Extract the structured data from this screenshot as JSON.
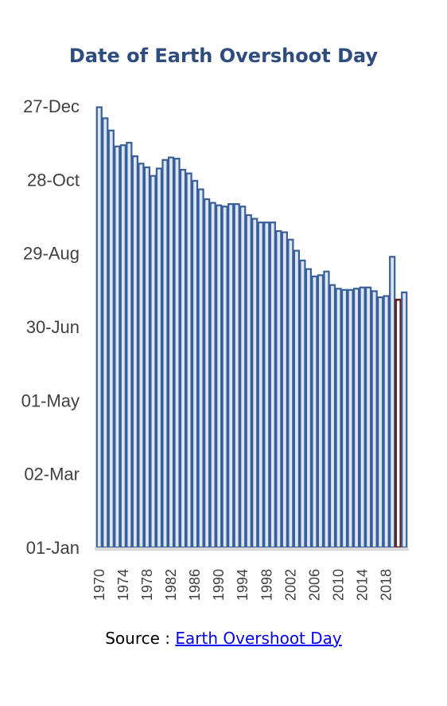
{
  "chart_data": {
    "type": "bar",
    "title": "Date of Earth Overshoot Day",
    "xlabel": "",
    "ylabel": "",
    "y_unit": "day of year",
    "ylim": [
      1,
      361
    ],
    "grid": false,
    "legend": "none",
    "yticks": [
      {
        "value": 1,
        "label": "01-Jan"
      },
      {
        "value": 61,
        "label": "02-Mar"
      },
      {
        "value": 121,
        "label": "01-May"
      },
      {
        "value": 181,
        "label": "30-Jun"
      },
      {
        "value": 241,
        "label": "29-Aug"
      },
      {
        "value": 301,
        "label": "28-Oct"
      },
      {
        "value": 361,
        "label": "27-Dec"
      }
    ],
    "xtick_labels": [
      "1970",
      "1974",
      "1978",
      "1982",
      "1986",
      "1990",
      "1994",
      "1998",
      "2002",
      "2006",
      "2010",
      "2014",
      "2018"
    ],
    "categories": [
      "1970",
      "1971",
      "1972",
      "1973",
      "1974",
      "1975",
      "1976",
      "1977",
      "1978",
      "1979",
      "1980",
      "1981",
      "1982",
      "1983",
      "1984",
      "1985",
      "1986",
      "1987",
      "1988",
      "1989",
      "1990",
      "1991",
      "1992",
      "1993",
      "1994",
      "1995",
      "1996",
      "1997",
      "1998",
      "1999",
      "2000",
      "2001",
      "2002",
      "2003",
      "2004",
      "2005",
      "2006",
      "2007",
      "2008",
      "2009",
      "2010",
      "2011",
      "2012",
      "2013",
      "2014",
      "2015",
      "2016",
      "2017",
      "2018",
      "2019",
      "2020",
      "2021"
    ],
    "values": [
      360,
      351,
      341,
      328,
      329,
      331,
      320,
      314,
      311,
      304,
      310,
      317,
      319,
      318,
      309,
      306,
      300,
      293,
      285,
      282,
      280,
      279,
      281,
      281,
      279,
      272,
      269,
      266,
      266,
      266,
      259,
      258,
      252,
      243,
      235,
      228,
      222,
      223,
      226,
      215,
      212,
      211,
      211,
      212,
      213,
      213,
      210,
      205,
      206,
      238,
      203,
      209
    ],
    "highlight_index": 50,
    "colors": {
      "bar_fill": "#dce6f2",
      "bar_stroke": "#3a5f98",
      "highlight_stroke": "#6b1c1c",
      "title": "#2e4c7e",
      "axis_text": "#404040",
      "baseline": "#d9d9d9"
    }
  },
  "source": {
    "prefix": "Source : ",
    "link_text": "Earth Overshoot Day"
  }
}
